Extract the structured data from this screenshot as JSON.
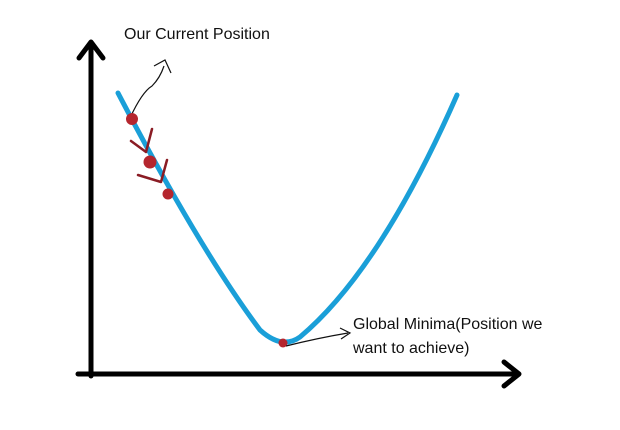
{
  "labels": {
    "current_position": "Our Current Position",
    "global_minima_line1": "Global Minima(Position we",
    "global_minima_line2": "want to achieve)"
  },
  "colors": {
    "axes": "#000000",
    "curve": "#1a9fd8",
    "points": "#b5262e",
    "arrows": "#8a1c24",
    "annotation": "#111111",
    "background": "#ffffff"
  },
  "icons": {
    "step_marker": "down-chevron-arrow"
  }
}
